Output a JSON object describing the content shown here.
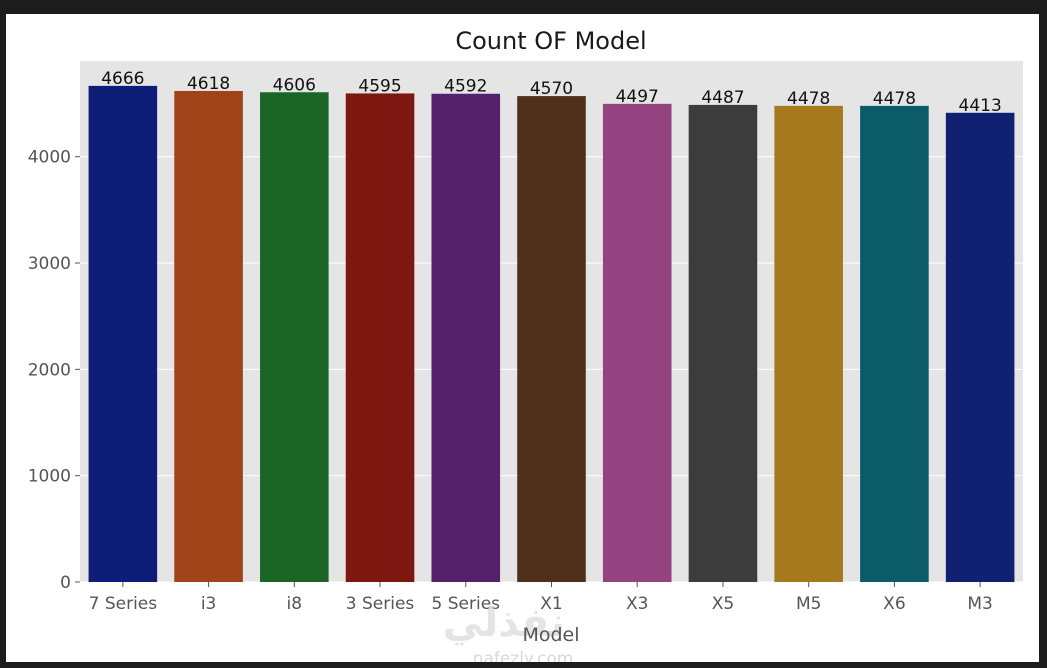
{
  "chart_data": {
    "type": "bar",
    "title": "Count OF Model",
    "xlabel": "Model",
    "ylabel": "",
    "categories": [
      "7 Series",
      "i3",
      "i8",
      "3 Series",
      "5 Series",
      "X1",
      "X3",
      "X5",
      "M5",
      "X6",
      "M3"
    ],
    "values": [
      4666,
      4618,
      4606,
      4595,
      4592,
      4570,
      4497,
      4487,
      4478,
      4478,
      4413
    ],
    "data_labels": [
      "4666",
      "4618",
      "4606",
      "4595",
      "4592",
      "4570",
      "4497",
      "4487",
      "4478",
      "4478",
      "4413"
    ],
    "colors": [
      "#0e1e78",
      "#a04319",
      "#1b6526",
      "#7d1811",
      "#55216a",
      "#50301b",
      "#944380",
      "#3c3c3c",
      "#a57a1e",
      "#0b5b69",
      "#0f2170"
    ],
    "yticks": [
      0,
      1000,
      2000,
      3000,
      4000
    ],
    "ylim": [
      0,
      4900
    ],
    "grid": true,
    "legend": "none",
    "plot_background": "#e5e5e5"
  },
  "watermark": {
    "main": "نفذلي",
    "sub": "nafezly.com"
  }
}
